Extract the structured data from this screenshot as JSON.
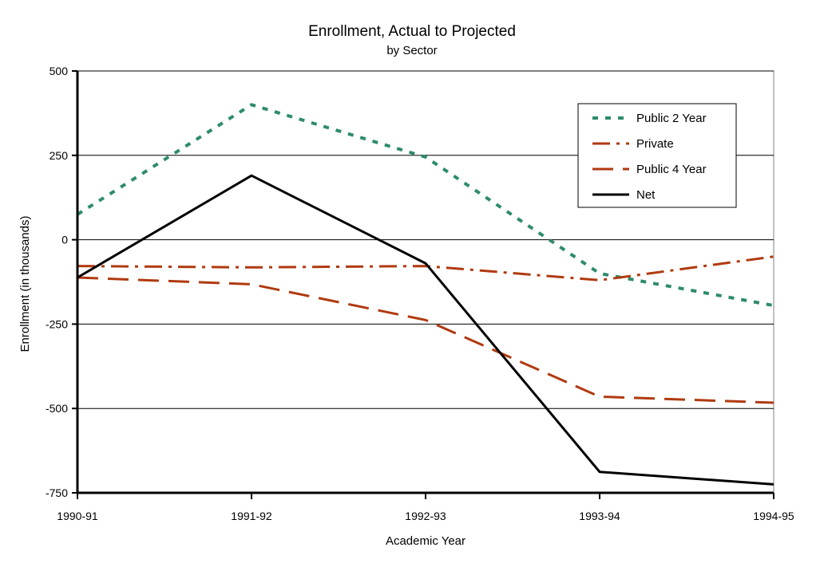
{
  "chart_data": {
    "type": "line",
    "title": "Enrollment, Actual to Projected",
    "subtitle": "by Sector",
    "xlabel": "Academic Year",
    "ylabel": "Enrollment (in thousands)",
    "categories": [
      "1990-91",
      "1991-92",
      "1992-93",
      "1993-94",
      "1994-95"
    ],
    "ylim": [
      -750,
      500
    ],
    "yticks": [
      500,
      250,
      0,
      -250,
      -500,
      -750
    ],
    "ytick_labels": [
      "500",
      "250",
      "0",
      "-250",
      "-500",
      "-750"
    ],
    "grid": "horizontal",
    "legend_position": "top-right",
    "series": [
      {
        "name": "Public 2 Year",
        "values": [
          75,
          400,
          245,
          -100,
          -195
        ],
        "color": "#2e8b6b",
        "style": "dotted"
      },
      {
        "name": "Private",
        "values": [
          -78,
          -82,
          -78,
          -120,
          -50
        ],
        "color": "#b03a10",
        "style": "dash-dot"
      },
      {
        "name": "Public 4 Year",
        "values": [
          -112,
          -132,
          -238,
          -465,
          -483
        ],
        "color": "#b03a10",
        "style": "dashed"
      },
      {
        "name": "Net",
        "values": [
          -112,
          190,
          -70,
          -688,
          -725
        ],
        "color": "#000000",
        "style": "solid"
      }
    ]
  }
}
